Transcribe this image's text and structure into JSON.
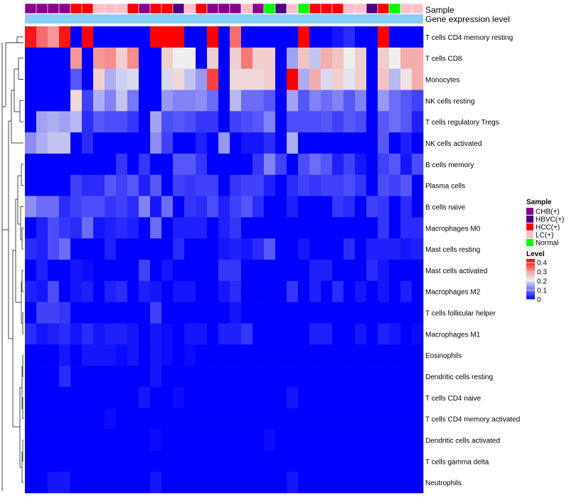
{
  "chart_data": {
    "type": "heatmap",
    "title": "",
    "annotation_tracks": [
      "Sample",
      "Gene expression level"
    ],
    "rows": [
      "T cells CD4 memory resting",
      "T cells CD8",
      "Monocytes",
      "NK cells resting",
      "T cells regulatory  Tregs",
      "NK cells activated",
      "B cells memory",
      "Plasma cells",
      "B cells naive",
      "Macrophages M0",
      "Mast cells resting",
      "Mast cells activated",
      "Macrophages M2",
      "T cells follicular helper",
      "Macrophages M1",
      "Eosinophils",
      "Dendritic cells resting",
      "T cells CD4 naive",
      "T cells CD4 memory activated",
      "Dendritic cells activated",
      "T cells gamma delta",
      "Neutrophils"
    ],
    "sample_groups": [
      "CHB(+)",
      "CHB(+)",
      "CHB(+)",
      "CHB(+)",
      "HCC(+)",
      "HCC(+)",
      "LC(+)",
      "LC(+)",
      "LC(+)",
      "HCC(+)",
      "CHB(+)",
      "HCC(+)",
      "HCC(+)",
      "HBVC(+)",
      "LC(+)",
      "HCC(+)",
      "CHB(+)",
      "CHB(+)",
      "CHB(+)",
      "LC(+)",
      "CHB(+)",
      "Normal",
      "HBVC(+)",
      "LC(+)",
      "Normal",
      "HCC(+)",
      "HCC(+)",
      "HCC(+)",
      "LC(+)",
      "LC(+)",
      "HBVC(+)",
      "HCC(+)",
      "Normal",
      "LC(+)",
      "LC(+)"
    ],
    "values": [
      [
        0.42,
        0.34,
        0.3,
        0.42,
        0.0,
        0.44,
        0.0,
        0.0,
        0.0,
        0.0,
        0.0,
        0.44,
        0.44,
        0.44,
        0.0,
        0.0,
        0.44,
        0.0,
        0.34,
        0.0,
        0.0,
        0.0,
        0.0,
        0.0,
        0.44,
        0.0,
        0.0,
        0.02,
        0.04,
        0.0,
        0.0,
        0.44,
        0.0,
        0.0,
        0.0
      ],
      [
        0.0,
        0.0,
        0.0,
        0.0,
        0.3,
        0.0,
        0.3,
        0.31,
        0.25,
        0.31,
        0.0,
        0.0,
        0.25,
        0.22,
        0.22,
        0.0,
        0.25,
        0.0,
        0.25,
        0.33,
        0.25,
        0.25,
        0.0,
        0.15,
        0.26,
        0.18,
        0.28,
        0.26,
        0.22,
        0.25,
        0.0,
        0.25,
        0.22,
        0.28,
        0.28
      ],
      [
        0.0,
        0.0,
        0.0,
        0.0,
        0.08,
        0.0,
        0.25,
        0.16,
        0.19,
        0.2,
        0.0,
        0.0,
        0.2,
        0.24,
        0.18,
        0.14,
        0.38,
        0.0,
        0.24,
        0.24,
        0.24,
        0.25,
        0.0,
        0.44,
        0.16,
        0.28,
        0.2,
        0.25,
        0.21,
        0.25,
        0.0,
        0.26,
        0.17,
        0.23,
        0.28
      ],
      [
        0.0,
        0.0,
        0.0,
        0.0,
        0.24,
        0.06,
        0.16,
        0.12,
        0.18,
        0.11,
        0.0,
        0.0,
        0.14,
        0.12,
        0.12,
        0.13,
        0.1,
        0.0,
        0.17,
        0.1,
        0.1,
        0.08,
        0.0,
        0.15,
        0.08,
        0.12,
        0.1,
        0.12,
        0.08,
        0.12,
        0.0,
        0.14,
        0.1,
        0.08,
        0.06
      ],
      [
        0.0,
        0.15,
        0.16,
        0.15,
        0.17,
        0.04,
        0.08,
        0.07,
        0.07,
        0.05,
        0.0,
        0.15,
        0.07,
        0.08,
        0.07,
        0.05,
        0.05,
        0.0,
        0.06,
        0.07,
        0.08,
        0.12,
        0.0,
        0.07,
        0.07,
        0.07,
        0.08,
        0.06,
        0.08,
        0.07,
        0.0,
        0.08,
        0.1,
        0.08,
        0.03
      ],
      [
        0.13,
        0.16,
        0.18,
        0.18,
        0.0,
        0.04,
        0.0,
        0.0,
        0.0,
        0.0,
        0.0,
        0.13,
        0.06,
        0.0,
        0.0,
        0.03,
        0.0,
        0.14,
        0.0,
        0.02,
        0.02,
        0.04,
        0.0,
        0.16,
        0.0,
        0.0,
        0.0,
        0.0,
        0.0,
        0.0,
        0.0,
        0.08,
        0.0,
        0.03,
        0.0
      ],
      [
        0.0,
        0.0,
        0.0,
        0.0,
        0.0,
        0.0,
        0.0,
        0.0,
        0.05,
        0.0,
        0.05,
        0.0,
        0.0,
        0.08,
        0.08,
        0.05,
        0.0,
        0.0,
        0.0,
        0.0,
        0.05,
        0.12,
        0.06,
        0.0,
        0.07,
        0.1,
        0.08,
        0.03,
        0.06,
        0.02,
        0.0,
        0.06,
        0.08,
        0.02,
        0.07
      ],
      [
        0.0,
        0.0,
        0.0,
        0.0,
        0.06,
        0.04,
        0.04,
        0.08,
        0.06,
        0.08,
        0.03,
        0.08,
        0.0,
        0.06,
        0.05,
        0.06,
        0.06,
        0.0,
        0.05,
        0.06,
        0.06,
        0.03,
        0.0,
        0.04,
        0.06,
        0.05,
        0.06,
        0.06,
        0.07,
        0.05,
        0.0,
        0.07,
        0.06,
        0.08,
        0.0
      ],
      [
        0.13,
        0.1,
        0.1,
        0.04,
        0.06,
        0.07,
        0.07,
        0.05,
        0.06,
        0.04,
        0.12,
        0.02,
        0.1,
        0.0,
        0.05,
        0.04,
        0.07,
        0.03,
        0.06,
        0.08,
        0.04,
        0.0,
        0.0,
        0.03,
        0.0,
        0.0,
        0.0,
        0.05,
        0.04,
        0.0,
        0.06,
        0.05,
        0.0,
        0.04,
        0.0
      ],
      [
        0.0,
        0.03,
        0.07,
        0.05,
        0.04,
        0.1,
        0.02,
        0.03,
        0.04,
        0.03,
        0.0,
        0.1,
        0.0,
        0.03,
        0.03,
        0.03,
        0.0,
        0.03,
        0.05,
        0.0,
        0.0,
        0.0,
        0.0,
        0.0,
        0.0,
        0.0,
        0.0,
        0.0,
        0.0,
        0.0,
        0.0,
        0.05,
        0.0,
        0.04,
        0.04
      ],
      [
        0.04,
        0.03,
        0.07,
        0.1,
        0.0,
        0.0,
        0.0,
        0.03,
        0.0,
        0.0,
        0.0,
        0.0,
        0.0,
        0.04,
        0.0,
        0.0,
        0.0,
        0.02,
        0.03,
        0.02,
        0.04,
        0.08,
        0.0,
        0.0,
        0.02,
        0.0,
        0.0,
        0.0,
        0.04,
        0.0,
        0.03,
        0.03,
        0.03,
        0.02,
        0.03
      ],
      [
        0.0,
        0.03,
        0.0,
        0.0,
        0.02,
        0.01,
        0.0,
        0.0,
        0.0,
        0.0,
        0.06,
        0.0,
        0.02,
        0.0,
        0.0,
        0.0,
        0.0,
        0.05,
        0.05,
        0.0,
        0.0,
        0.0,
        0.0,
        0.0,
        0.0,
        0.03,
        0.03,
        0.0,
        0.0,
        0.0,
        0.04,
        0.02,
        0.0,
        0.0,
        0.0
      ],
      [
        0.03,
        0.02,
        0.07,
        0.0,
        0.02,
        0.03,
        0.0,
        0.03,
        0.04,
        0.0,
        0.03,
        0.02,
        0.0,
        0.02,
        0.02,
        0.0,
        0.0,
        0.02,
        0.04,
        0.0,
        0.0,
        0.0,
        0.0,
        0.05,
        0.0,
        0.03,
        0.0,
        0.04,
        0.0,
        0.02,
        0.0,
        0.02,
        0.0,
        0.03,
        0.0
      ],
      [
        0.0,
        0.06,
        0.06,
        0.05,
        0.0,
        0.0,
        0.0,
        0.0,
        0.0,
        0.0,
        0.0,
        0.06,
        0.0,
        0.0,
        0.0,
        0.0,
        0.0,
        0.0,
        0.02,
        0.0,
        0.0,
        0.0,
        0.0,
        0.0,
        0.0,
        0.0,
        0.0,
        0.0,
        0.0,
        0.0,
        0.0,
        0.0,
        0.0,
        0.0,
        0.0
      ],
      [
        0.04,
        0.02,
        0.03,
        0.04,
        0.02,
        0.04,
        0.02,
        0.03,
        0.03,
        0.02,
        0.0,
        0.02,
        0.01,
        0.0,
        0.02,
        0.02,
        0.0,
        0.03,
        0.03,
        0.05,
        0.0,
        0.0,
        0.0,
        0.0,
        0.0,
        0.03,
        0.03,
        0.0,
        0.0,
        0.02,
        0.0,
        0.03,
        0.02,
        0.0,
        0.01
      ],
      [
        0.0,
        0.0,
        0.0,
        0.02,
        0.0,
        0.02,
        0.02,
        0.02,
        0.01,
        0.02,
        0.0,
        0.02,
        0.01,
        0.0,
        0.01,
        0.0,
        0.0,
        0.0,
        0.0,
        0.0,
        0.0,
        0.0,
        0.0,
        0.0,
        0.0,
        0.0,
        0.0,
        0.0,
        0.0,
        0.0,
        0.0,
        0.0,
        0.0,
        0.0,
        0.0
      ],
      [
        0.0,
        0.0,
        0.0,
        0.04,
        0.0,
        0.0,
        0.0,
        0.0,
        0.0,
        0.0,
        0.0,
        0.02,
        0.0,
        0.0,
        0.0,
        0.0,
        0.0,
        0.0,
        0.0,
        0.0,
        0.0,
        0.0,
        0.0,
        0.0,
        0.0,
        0.0,
        0.0,
        0.0,
        0.0,
        0.0,
        0.0,
        0.0,
        0.0,
        0.0,
        0.0
      ],
      [
        0.0,
        0.0,
        0.0,
        0.0,
        0.0,
        0.0,
        0.0,
        0.0,
        0.0,
        0.0,
        0.02,
        0.0,
        0.0,
        0.01,
        0.0,
        0.0,
        0.0,
        0.0,
        0.0,
        0.0,
        0.0,
        0.0,
        0.0,
        0.02,
        0.0,
        0.0,
        0.0,
        0.0,
        0.0,
        0.0,
        0.0,
        0.0,
        0.0,
        0.0,
        0.0
      ],
      [
        0.0,
        0.0,
        0.0,
        0.0,
        0.0,
        0.0,
        0.0,
        0.01,
        0.0,
        0.0,
        0.0,
        0.0,
        0.0,
        0.0,
        0.0,
        0.0,
        0.0,
        0.0,
        0.0,
        0.0,
        0.0,
        0.0,
        0.0,
        0.0,
        0.0,
        0.0,
        0.0,
        0.0,
        0.0,
        0.0,
        0.0,
        0.0,
        0.0,
        0.0,
        0.0
      ],
      [
        0.0,
        0.0,
        0.0,
        0.0,
        0.0,
        0.0,
        0.0,
        0.0,
        0.0,
        0.0,
        0.0,
        0.01,
        0.0,
        0.0,
        0.0,
        0.0,
        0.0,
        0.0,
        0.0,
        0.0,
        0.0,
        0.01,
        0.0,
        0.0,
        0.0,
        0.0,
        0.0,
        0.0,
        0.0,
        0.0,
        0.0,
        0.0,
        0.0,
        0.0,
        0.0
      ],
      [
        0.0,
        0.0,
        0.0,
        0.0,
        0.0,
        0.0,
        0.0,
        0.0,
        0.0,
        0.0,
        0.0,
        0.0,
        0.0,
        0.0,
        0.0,
        0.0,
        0.0,
        0.0,
        0.0,
        0.0,
        0.0,
        0.0,
        0.0,
        0.0,
        0.0,
        0.0,
        0.0,
        0.0,
        0.0,
        0.0,
        0.0,
        0.0,
        0.0,
        0.0,
        0.0
      ],
      [
        0.0,
        0.0,
        0.02,
        0.02,
        0.0,
        0.0,
        0.0,
        0.0,
        0.0,
        0.0,
        0.0,
        0.02,
        0.0,
        0.0,
        0.0,
        0.0,
        0.0,
        0.0,
        0.0,
        0.0,
        0.0,
        0.0,
        0.0,
        0.02,
        0.0,
        0.0,
        0.0,
        0.0,
        0.0,
        0.0,
        0.0,
        0.0,
        0.0,
        0.0,
        0.0
      ]
    ],
    "legends": {
      "sample": {
        "title": "Sample",
        "entries": [
          {
            "label": "CHB(+)",
            "color": "#8B008B"
          },
          {
            "label": "HBVC(+)",
            "color": "#4B0082"
          },
          {
            "label": "HCC(+)",
            "color": "#FF0000"
          },
          {
            "label": "LC(+)",
            "color": "#FFC0CB"
          },
          {
            "label": "Normal",
            "color": "#00FF00"
          }
        ]
      },
      "level": {
        "title": "Level",
        "ticks": [
          "0.4",
          "0.3",
          "0.2",
          "0.1",
          "0"
        ],
        "range": [
          0,
          0.44
        ],
        "colors": {
          "low": "#0000FF",
          "mid": "#EEEEEE",
          "high": "#FF0000"
        }
      }
    },
    "expression_track_color": "#87CEFA",
    "cell_border_color": "#FFFFFF"
  }
}
